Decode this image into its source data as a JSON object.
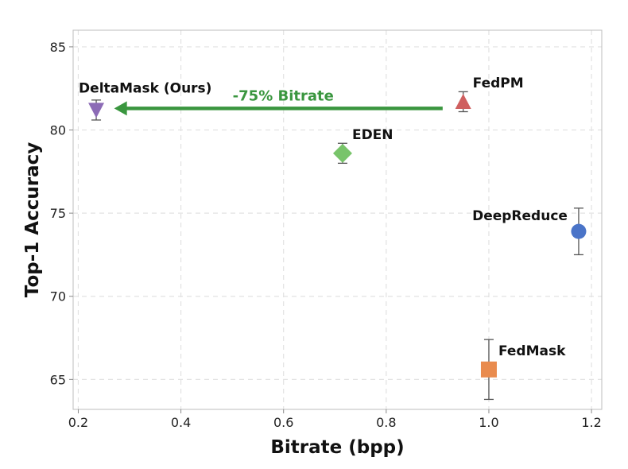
{
  "colors": {
    "arrow": "#3a963f",
    "grid": "#e2e2e2",
    "errorbar": "#555555"
  },
  "chart_data": {
    "type": "scatter",
    "xlabel": "Bitrate (bpp)",
    "ylabel": "Top-1 Accuracy",
    "xlim": [
      0.19,
      1.22
    ],
    "ylim": [
      63.2,
      86.0
    ],
    "xticks": [
      0.2,
      0.4,
      0.6,
      0.8,
      1.0,
      1.2
    ],
    "xtick_labels": [
      "0.2",
      "0.4",
      "0.6",
      "0.8",
      "1.0",
      "1.2"
    ],
    "yticks": [
      65,
      70,
      75,
      80,
      85
    ],
    "ytick_labels": [
      "65",
      "70",
      "75",
      "80",
      "85"
    ],
    "grid": true,
    "points": [
      {
        "label": "DeltaMask (Ours)",
        "x": 0.235,
        "y": 81.2,
        "err": 0.6,
        "marker": "triangle-down",
        "color": "#8c6bb6",
        "label_pos": "above"
      },
      {
        "label": "FedPM",
        "x": 0.95,
        "y": 81.7,
        "err": 0.6,
        "marker": "triangle-up",
        "color": "#cf6060",
        "label_pos": "upper-right"
      },
      {
        "label": "EDEN",
        "x": 0.715,
        "y": 78.6,
        "err": 0.6,
        "marker": "diamond",
        "color": "#78c46a",
        "label_pos": "upper-right"
      },
      {
        "label": "DeepReduce",
        "x": 1.175,
        "y": 73.9,
        "err": 1.4,
        "marker": "circle",
        "color": "#4a74c8",
        "label_pos": "upper-left"
      },
      {
        "label": "FedMask",
        "x": 1.0,
        "y": 65.6,
        "err": 1.8,
        "marker": "square",
        "color": "#e98b4e",
        "label_pos": "upper-right"
      }
    ],
    "annotations": [
      {
        "text": "-75% Bitrate",
        "from": [
          0.91,
          81.3
        ],
        "to": [
          0.27,
          81.3
        ]
      }
    ]
  }
}
